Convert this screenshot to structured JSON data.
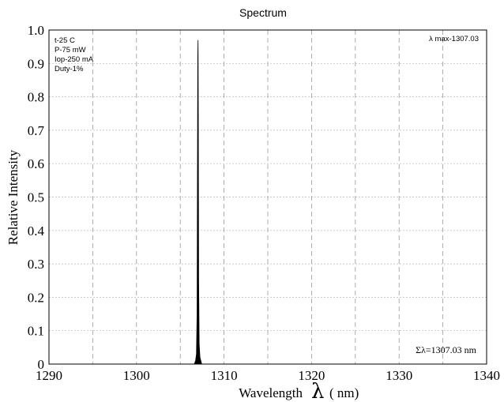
{
  "chart_data": {
    "type": "line",
    "title": "Spectrum",
    "xlabel": "Wavelength",
    "xlabel_symbol": "λ",
    "xlabel_unit": "( nm)",
    "ylabel": "Relative Intensity",
    "xlim": [
      1290,
      1340
    ],
    "ylim": [
      0,
      1.0
    ],
    "x_ticks": [
      1290,
      1300,
      1310,
      1320,
      1330,
      1340
    ],
    "x_tick_labels": [
      "1290",
      "1300",
      "1310",
      "1320",
      "1330",
      "1340"
    ],
    "x_minor_grid": [
      1295,
      1305,
      1315,
      1325,
      1335
    ],
    "y_ticks": [
      0,
      0.1,
      0.2,
      0.3,
      0.4,
      0.5,
      0.6,
      0.7,
      0.8,
      0.9,
      1.0
    ],
    "y_tick_labels": [
      "0",
      "0.1",
      "0.2",
      "0.3",
      "0.4",
      "0.5",
      "0.6",
      "0.7",
      "0.8",
      "0.9",
      "1.0"
    ],
    "grid": true,
    "series": [
      {
        "color": "#000000",
        "x": [
          1306.6,
          1306.75,
          1306.85,
          1306.92,
          1306.96,
          1307.0,
          1307.03,
          1307.06,
          1307.1,
          1307.16,
          1307.25,
          1307.35,
          1307.45
        ],
        "y": [
          0,
          0.01,
          0.03,
          0.15,
          0.55,
          0.92,
          0.97,
          0.75,
          0.25,
          0.06,
          0.02,
          0.01,
          0
        ]
      }
    ],
    "conditions": [
      "t-25 C",
      "P-75 mW",
      "Iop-250 mA",
      "Duty-1%"
    ],
    "peak_annotation": "λ max-1307.03",
    "sum_annotation": "Σλ=1307.03 nm"
  }
}
